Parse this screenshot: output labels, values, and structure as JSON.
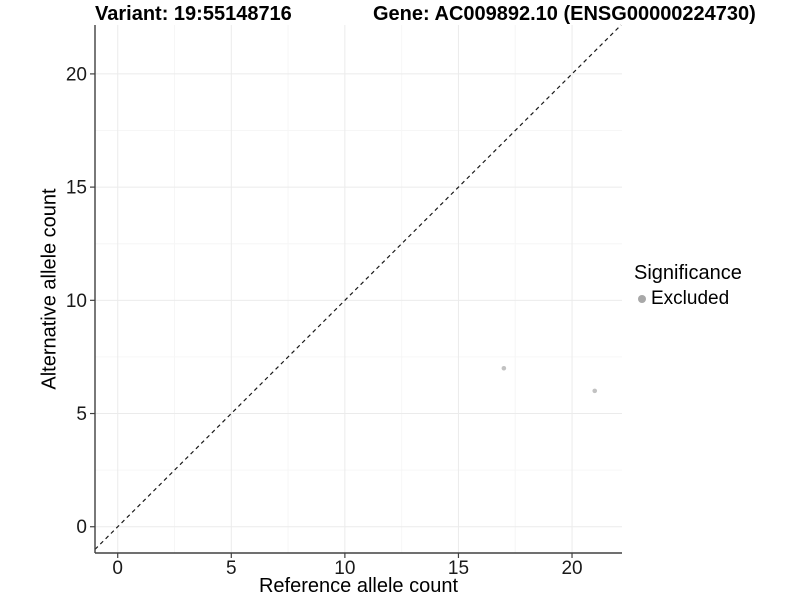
{
  "chart_data": {
    "type": "scatter",
    "title_left": "Variant: 19:55148716",
    "title_right": "Gene: AC009892.10 (ENSG00000224730)",
    "xlabel": "Reference allele count",
    "ylabel": "Alternative allele count",
    "xlim": [
      -1.0,
      22.2
    ],
    "ylim": [
      -1.16,
      22.16
    ],
    "x_ticks": [
      0,
      5,
      10,
      15,
      20
    ],
    "y_ticks": [
      0,
      5,
      10,
      15,
      20
    ],
    "x_minor_ticks": [
      2.5,
      7.5,
      12.5,
      17.5
    ],
    "y_minor_ticks": [
      2.5,
      7.5,
      12.5,
      17.5
    ],
    "grid": true,
    "identity_line": {
      "style": "dashed",
      "equation": "y = x",
      "from": -1.0,
      "to": 22.16
    },
    "series": [
      {
        "name": "Excluded",
        "points": [
          {
            "x": 17,
            "y": 7
          },
          {
            "x": 21,
            "y": 6
          }
        ],
        "color": "#c2c2c2"
      }
    ],
    "legend": {
      "title": "Significance",
      "position": "right",
      "entries": [
        {
          "label": "Excluded",
          "marker_color": "#a8a8a8"
        }
      ]
    },
    "colors": {
      "background": "#ffffff",
      "grid_major": "#ebebeb",
      "grid_minor": "#f6f6f6",
      "axis_line": "#404040",
      "tick_text": "#1a1a1a",
      "identity_line": "#1a1a1a"
    }
  }
}
